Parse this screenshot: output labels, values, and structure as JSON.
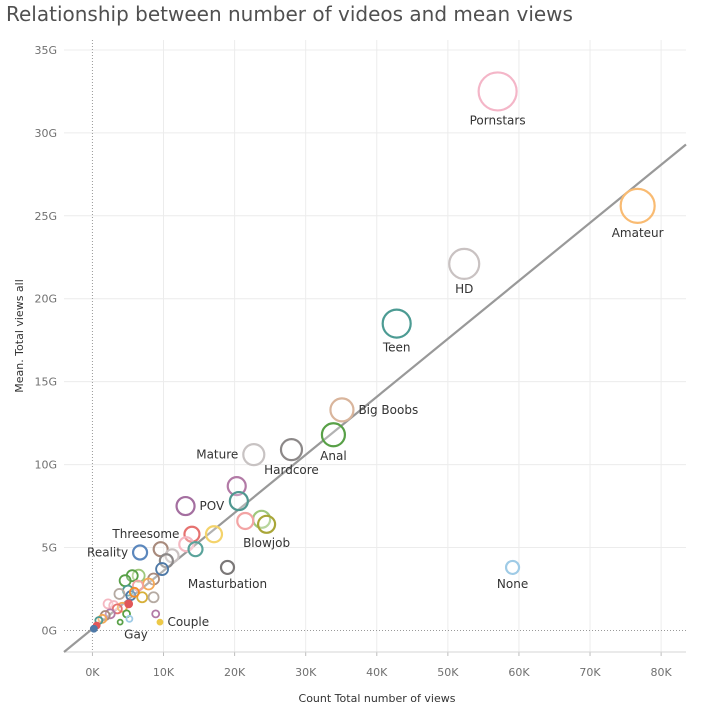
{
  "chart_data": {
    "type": "scatter",
    "title": "Relationship between number of videos and mean views",
    "xlabel": "Count Total number of views",
    "ylabel": "Mean. Total views all",
    "xlim": [
      -4000,
      83500
    ],
    "ylim": [
      -1300000000,
      35600000000
    ],
    "x_ticks": [
      0,
      10000,
      20000,
      30000,
      40000,
      50000,
      60000,
      70000,
      80000
    ],
    "x_tick_labels": [
      "0K",
      "10K",
      "20K",
      "30K",
      "40K",
      "50K",
      "60K",
      "70K",
      "80K"
    ],
    "y_ticks": [
      0,
      5000000000,
      10000000000,
      15000000000,
      20000000000,
      25000000000,
      30000000000,
      35000000000
    ],
    "y_tick_labels": [
      "0G",
      "5G",
      "10G",
      "15G",
      "20G",
      "25G",
      "30G",
      "35G"
    ],
    "grid": true,
    "trend_line": {
      "x": [
        -4000,
        83500
      ],
      "y": [
        -1300000000,
        29300000000
      ],
      "color": "#999999"
    },
    "points": [
      {
        "label": "Pornstars",
        "x": 57000,
        "y": 32500000000,
        "size": 19,
        "color": "#f4b6c8",
        "label_pos": "below"
      },
      {
        "label": "Amateur",
        "x": 76700,
        "y": 25600000000,
        "size": 17,
        "color": "#f9bb72",
        "label_pos": "below"
      },
      {
        "label": "HD",
        "x": 52300,
        "y": 22100000000,
        "size": 15,
        "color": "#c9c2c2",
        "label_pos": "below"
      },
      {
        "label": "Teen",
        "x": 42800,
        "y": 18500000000,
        "size": 14,
        "color": "#4c9b93",
        "label_pos": "below"
      },
      {
        "label": "Big Boobs",
        "x": 35100,
        "y": 13300000000,
        "size": 11.5,
        "color": "#d9b59c",
        "label_pos": "right"
      },
      {
        "label": "Anal",
        "x": 33900,
        "y": 11800000000,
        "size": 11.5,
        "color": "#58a047",
        "label_pos": "below"
      },
      {
        "label": "Hardcore",
        "x": 28000,
        "y": 10900000000,
        "size": 10.5,
        "color": "#8c8888",
        "label_pos": "below"
      },
      {
        "label": "Mature",
        "x": 22700,
        "y": 10600000000,
        "size": 10.5,
        "color": "#c8c3c3",
        "label_pos": "left"
      },
      {
        "label": "",
        "x": 20300,
        "y": 8700000000,
        "size": 9,
        "color": "#b27aa6"
      },
      {
        "label": "POV",
        "x": 13100,
        "y": 7500000000,
        "size": 9,
        "color": "#a46fa0",
        "label_pos": "right"
      },
      {
        "label": "",
        "x": 20600,
        "y": 7800000000,
        "size": 9,
        "color": "#509790"
      },
      {
        "label": "",
        "x": 23800,
        "y": 6700000000,
        "size": 8.5,
        "color": "#9fc77c"
      },
      {
        "label": "Blowjob",
        "x": 24500,
        "y": 6400000000,
        "size": 8.5,
        "color": "#a9a638",
        "label_pos": "below"
      },
      {
        "label": "",
        "x": 21500,
        "y": 6600000000,
        "size": 8,
        "color": "#f3a4a4"
      },
      {
        "label": "",
        "x": 17100,
        "y": 5800000000,
        "size": 8,
        "color": "#f4d36b"
      },
      {
        "label": "Threesome",
        "x": 14000,
        "y": 5800000000,
        "size": 7.5,
        "color": "#e67270",
        "label_pos": "left"
      },
      {
        "label": "",
        "x": 13200,
        "y": 5200000000,
        "size": 7,
        "color": "#f5b8c2"
      },
      {
        "label": "",
        "x": 14500,
        "y": 4900000000,
        "size": 7,
        "color": "#5aa39b"
      },
      {
        "label": "",
        "x": 9600,
        "y": 4900000000,
        "size": 7,
        "color": "#a88a7c"
      },
      {
        "label": "Reality",
        "x": 6700,
        "y": 4700000000,
        "size": 7,
        "color": "#5b87bd",
        "label_pos": "left"
      },
      {
        "label": "",
        "x": 11200,
        "y": 4500000000,
        "size": 6.5,
        "color": "#c9c2c2"
      },
      {
        "label": "",
        "x": 10400,
        "y": 4200000000,
        "size": 6.5,
        "color": "#8c8888"
      },
      {
        "label": "Masturbation",
        "x": 19000,
        "y": 3800000000,
        "size": 6.5,
        "color": "#7b7878",
        "label_pos": "below"
      },
      {
        "label": "None",
        "x": 59100,
        "y": 3800000000,
        "size": 6.5,
        "color": "#9fcbe6",
        "label_pos": "below"
      },
      {
        "label": "",
        "x": 9800,
        "y": 3700000000,
        "size": 6,
        "color": "#4e79a7"
      },
      {
        "label": "",
        "x": 6500,
        "y": 3300000000,
        "size": 6,
        "color": "#9fc77c"
      },
      {
        "label": "",
        "x": 5600,
        "y": 3300000000,
        "size": 5.5,
        "color": "#58a047"
      },
      {
        "label": "",
        "x": 4600,
        "y": 3000000000,
        "size": 5.5,
        "color": "#58a047"
      },
      {
        "label": "",
        "x": 8600,
        "y": 3100000000,
        "size": 5.5,
        "color": "#a88a7c"
      },
      {
        "label": "",
        "x": 7900,
        "y": 2800000000,
        "size": 5.5,
        "color": "#f4a957"
      },
      {
        "label": "",
        "x": 6400,
        "y": 2700000000,
        "size": 5,
        "color": "#f3a4a4"
      },
      {
        "label": "",
        "x": 5000,
        "y": 2400000000,
        "size": 5,
        "color": "#4c9b93"
      },
      {
        "label": "",
        "x": 3800,
        "y": 2200000000,
        "size": 5,
        "color": "#b5aaa2"
      },
      {
        "label": "",
        "x": 7000,
        "y": 2000000000,
        "size": 5,
        "color": "#d7b03a"
      },
      {
        "label": "",
        "x": 8600,
        "y": 2000000000,
        "size": 5,
        "color": "#b5aaa2"
      },
      {
        "label": "",
        "x": 5400,
        "y": 2100000000,
        "size": 4.5,
        "color": "#4e79a7"
      },
      {
        "label": "",
        "x": 5900,
        "y": 2300000000,
        "size": 4.5,
        "color": "#f28e2b"
      },
      {
        "label": "",
        "x": 2200,
        "y": 1600000000,
        "size": 4.5,
        "color": "#f5b8c2"
      },
      {
        "label": "",
        "x": 3000,
        "y": 1500000000,
        "size": 4.5,
        "color": "#f5b8c2"
      },
      {
        "label": "",
        "x": 4200,
        "y": 1400000000,
        "size": 4.5,
        "color": "#f4a957"
      },
      {
        "label": "",
        "x": 3500,
        "y": 1300000000,
        "size": 4.5,
        "color": "#e67270"
      },
      {
        "label": "",
        "x": 2500,
        "y": 1000000000,
        "size": 4.5,
        "color": "#b27aa6"
      },
      {
        "label": "",
        "x": 1800,
        "y": 900000000,
        "size": 4.5,
        "color": "#a88a7c"
      },
      {
        "label": "",
        "x": 1400,
        "y": 700000000,
        "size": 4,
        "color": "#f4a957"
      },
      {
        "label": "",
        "x": 5100,
        "y": 1600000000,
        "size": 3.5,
        "color": "#e15759",
        "fill": true
      },
      {
        "label": "",
        "x": 4800,
        "y": 1000000000,
        "size": 3.5,
        "color": "#58a047"
      },
      {
        "label": "",
        "x": 900,
        "y": 600000000,
        "size": 3.5,
        "color": "#4c9b93"
      },
      {
        "label": "",
        "x": 600,
        "y": 300000000,
        "size": 3,
        "color": "#e15759",
        "fill": true
      },
      {
        "label": "",
        "x": 200,
        "y": 100000000,
        "size": 3,
        "color": "#4e79a7",
        "fill": true
      },
      {
        "label": "",
        "x": 5200,
        "y": 700000000,
        "size": 3,
        "color": "#9fcbe6"
      },
      {
        "label": "Gay",
        "x": 3900,
        "y": 500000000,
        "size": 2.5,
        "color": "#58a047",
        "label_pos": "below-right"
      },
      {
        "label": "",
        "x": 8900,
        "y": 1000000000,
        "size": 3.5,
        "color": "#b27aa6"
      },
      {
        "label": "Couple",
        "x": 9500,
        "y": 500000000,
        "size": 2.5,
        "color": "#edc948",
        "fill": true,
        "label_pos": "right"
      }
    ]
  }
}
